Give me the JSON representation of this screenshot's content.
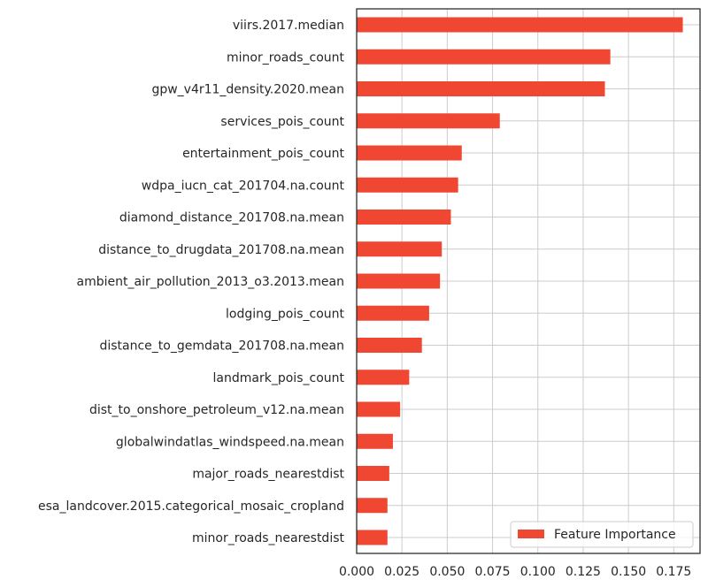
{
  "chart_data": {
    "type": "bar",
    "orientation": "horizontal",
    "categories": [
      "viirs.2017.median",
      "minor_roads_count",
      "gpw_v4r11_density.2020.mean",
      "services_pois_count",
      "entertainment_pois_count",
      "wdpa_iucn_cat_201704.na.count",
      "diamond_distance_201708.na.mean",
      "distance_to_drugdata_201708.na.mean",
      "ambient_air_pollution_2013_o3.2013.mean",
      "lodging_pois_count",
      "distance_to_gemdata_201708.na.mean",
      "landmark_pois_count",
      "dist_to_onshore_petroleum_v12.na.mean",
      "globalwindatlas_windspeed.na.mean",
      "major_roads_nearestdist",
      "esa_landcover.2015.categorical_mosaic_cropland",
      "minor_roads_nearestdist"
    ],
    "series": [
      {
        "name": "Feature Importance",
        "color": "#f04733",
        "values": [
          0.18,
          0.14,
          0.137,
          0.079,
          0.058,
          0.056,
          0.052,
          0.047,
          0.046,
          0.04,
          0.036,
          0.029,
          0.024,
          0.02,
          0.018,
          0.017,
          0.017
        ]
      }
    ],
    "x_ticks": [
      "0.000",
      "0.025",
      "0.050",
      "0.075",
      "0.100",
      "0.125",
      "0.150",
      "0.175"
    ],
    "xlim": [
      0,
      0.1895
    ],
    "grid": true,
    "legend_position": "lower-right",
    "title": "",
    "xlabel": "",
    "ylabel": ""
  }
}
